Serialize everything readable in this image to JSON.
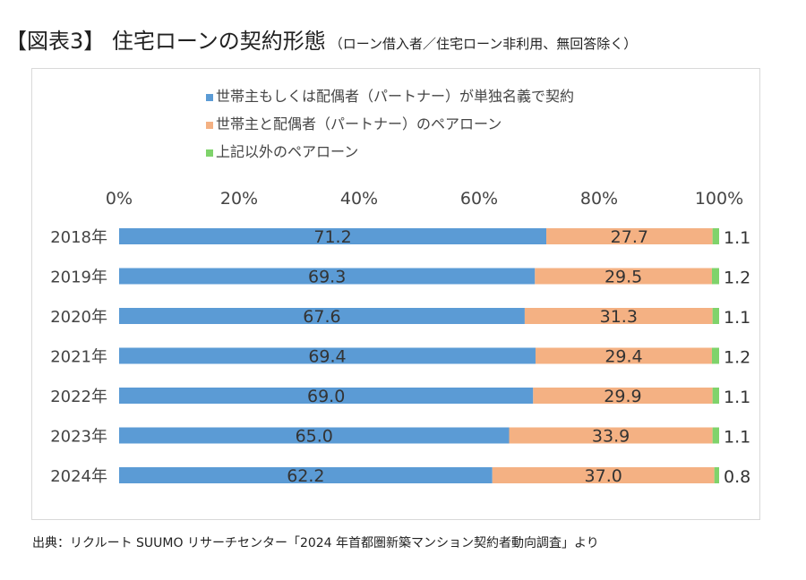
{
  "title": "【図表3】 住宅ローンの契約形態",
  "subtitle": "（ローン借入者／住宅ローン非利用、無回答除く）",
  "source": "出典：リクルート SUUMO リサーチセンター「2024 年首都圏新築マンション契約者動向調査」より",
  "chart_data": {
    "type": "bar",
    "stacked": true,
    "orientation": "horizontal",
    "categories": [
      "2018年",
      "2019年",
      "2020年",
      "2021年",
      "2022年",
      "2023年",
      "2024年"
    ],
    "series": [
      {
        "name": "世帯主もしくは配偶者（パートナー）が単独名義で契約",
        "color": "#5b9bd5",
        "values": [
          71.2,
          69.3,
          67.6,
          69.4,
          69.0,
          65.0,
          62.2
        ]
      },
      {
        "name": "世帯主と配偶者（パートナー）のペアローン",
        "color": "#f4b183",
        "values": [
          27.7,
          29.5,
          31.3,
          29.4,
          29.9,
          33.9,
          37.0
        ]
      },
      {
        "name": "上記以外のペアローン",
        "color": "#7fd36b",
        "values": [
          1.1,
          1.2,
          1.1,
          1.2,
          1.1,
          1.1,
          0.8
        ]
      }
    ],
    "xticks": [
      "0%",
      "20%",
      "40%",
      "60%",
      "80%",
      "100%"
    ],
    "xlim": [
      0,
      100
    ],
    "legend": "top",
    "grid": false
  }
}
